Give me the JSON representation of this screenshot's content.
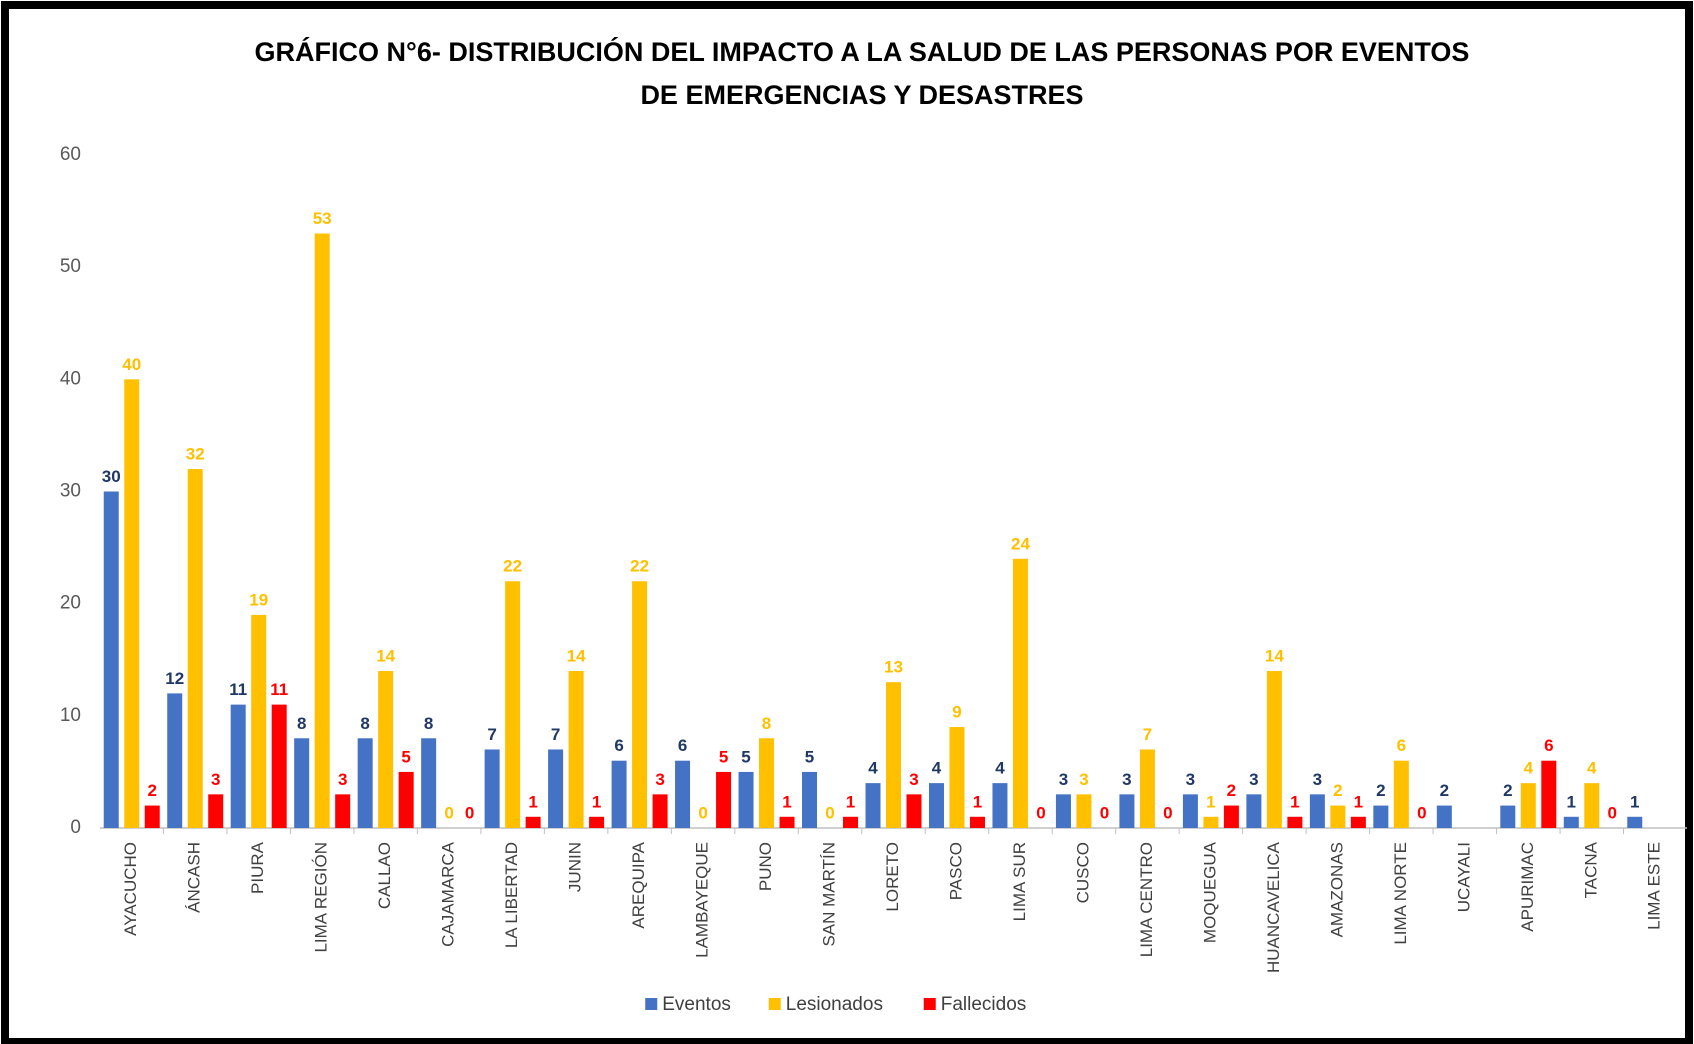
{
  "chart_data": {
    "type": "bar",
    "title": [
      "GRÁFICO N°6- DISTRIBUCIÓN DEL IMPACTO A LA SALUD DE LAS PERSONAS POR EVENTOS",
      "DE EMERGENCIAS Y DESASTRES"
    ],
    "categories": [
      "AYACUCHO",
      "ÁNCASH",
      "PIURA",
      "LIMA REGIÓN",
      "CALLAO",
      "CAJAMARCA",
      "LA LIBERTAD",
      "JUNIN",
      "AREQUIPA",
      "LAMBAYEQUE",
      "PUNO",
      "SAN MARTÍN",
      "LORETO",
      "PASCO",
      "LIMA SUR",
      "CUSCO",
      "LIMA CENTRO",
      "MOQUEGUA",
      "HUANCAVELICA",
      "AMAZONAS",
      "LIMA NORTE",
      "UCAYALI",
      "APURIMAC",
      "TACNA",
      "LIMA ESTE"
    ],
    "series": [
      {
        "name": "Eventos",
        "color": "#4472c4",
        "label_color": "#1f3864",
        "values": [
          30,
          12,
          11,
          8,
          8,
          8,
          7,
          7,
          6,
          6,
          5,
          5,
          4,
          4,
          4,
          3,
          3,
          3,
          3,
          3,
          2,
          2,
          2,
          1,
          1
        ]
      },
      {
        "name": "Lesionados",
        "color": "#ffc000",
        "label_color": "#ffc000",
        "values": [
          40,
          32,
          19,
          53,
          14,
          0,
          22,
          14,
          22,
          0,
          8,
          0,
          13,
          9,
          24,
          3,
          7,
          1,
          14,
          2,
          6,
          null,
          4,
          4,
          null
        ]
      },
      {
        "name": "Fallecidos",
        "color": "#ff0000",
        "label_color": "#ff0000",
        "values": [
          2,
          3,
          11,
          3,
          5,
          0,
          1,
          1,
          3,
          5,
          1,
          1,
          3,
          1,
          0,
          0,
          0,
          2,
          1,
          1,
          0,
          null,
          6,
          0,
          null
        ]
      }
    ],
    "ylim": [
      0,
      60
    ],
    "yticks": [
      0,
      10,
      20,
      30,
      40,
      50,
      60
    ],
    "grid": false,
    "legend": "bottom"
  }
}
